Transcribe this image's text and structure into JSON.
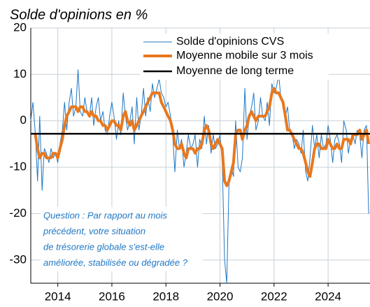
{
  "chart_data": {
    "type": "line",
    "title": "Solde d'opinions en %",
    "annotation": [
      "Question : Par rapport au mois",
      "précédent, votre situation",
      "de trésorerie globale s'est-elle",
      "améliorée, stabilisée ou dégradée ?"
    ],
    "xlim": [
      2013,
      2025.55
    ],
    "xticks": [
      2014,
      2016,
      2018,
      2020,
      2022,
      2024
    ],
    "ylim": [
      -35,
      20
    ],
    "yticks": [
      20,
      10,
      0,
      -10,
      -20,
      -30
    ],
    "grid": true,
    "legend": "upper right",
    "x": [
      2013,
      2013.08,
      2013.17,
      2013.25,
      2013.33,
      2013.42,
      2013.5,
      2013.58,
      2013.67,
      2013.75,
      2013.83,
      2013.92,
      2014,
      2014.08,
      2014.17,
      2014.25,
      2014.33,
      2014.42,
      2014.5,
      2014.58,
      2014.67,
      2014.75,
      2014.83,
      2014.92,
      2015,
      2015.08,
      2015.17,
      2015.25,
      2015.33,
      2015.42,
      2015.5,
      2015.58,
      2015.67,
      2015.75,
      2015.83,
      2015.92,
      2016,
      2016.08,
      2016.17,
      2016.25,
      2016.33,
      2016.42,
      2016.5,
      2016.58,
      2016.67,
      2016.75,
      2016.83,
      2016.92,
      2017,
      2017.08,
      2017.17,
      2017.25,
      2017.33,
      2017.42,
      2017.5,
      2017.58,
      2017.67,
      2017.75,
      2017.83,
      2017.92,
      2018,
      2018.08,
      2018.17,
      2018.25,
      2018.33,
      2018.42,
      2018.5,
      2018.58,
      2018.67,
      2018.75,
      2018.83,
      2018.92,
      2019,
      2019.08,
      2019.17,
      2019.25,
      2019.33,
      2019.42,
      2019.5,
      2019.58,
      2019.67,
      2019.75,
      2019.83,
      2019.92,
      2020,
      2020.08,
      2020.17,
      2020.25,
      2020.33,
      2020.42,
      2020.5,
      2020.58,
      2020.67,
      2020.75,
      2020.83,
      2020.92,
      2021,
      2021.08,
      2021.17,
      2021.25,
      2021.33,
      2021.42,
      2021.5,
      2021.58,
      2021.67,
      2021.75,
      2021.83,
      2021.92,
      2022,
      2022.08,
      2022.17,
      2022.25,
      2022.33,
      2022.42,
      2022.5,
      2022.58,
      2022.67,
      2022.75,
      2022.83,
      2022.92,
      2023,
      2023.08,
      2023.17,
      2023.25,
      2023.33,
      2023.42,
      2023.5,
      2023.58,
      2023.67,
      2023.75,
      2023.83,
      2023.92,
      2024,
      2024.08,
      2024.17,
      2024.25,
      2024.33,
      2024.42,
      2024.5,
      2024.58,
      2024.67,
      2024.75,
      2024.83,
      2024.92,
      2025,
      2025.08,
      2025.17,
      2025.25,
      2025.33,
      2025.42,
      2025.5
    ],
    "series": [
      {
        "name": "Solde d'opinions CVS",
        "color": "#1f77c4",
        "width": 1,
        "values": [
          0,
          4,
          -3,
          -13,
          1,
          -15,
          -6,
          -7,
          -9,
          -6,
          -8,
          -7,
          -9,
          -5,
          -2,
          4,
          -2,
          4,
          7,
          1,
          3,
          11,
          2,
          1,
          5,
          2,
          1,
          5,
          -1,
          3,
          5,
          0,
          2,
          -2,
          -3,
          1,
          4,
          1,
          -4,
          0,
          -3,
          6,
          1,
          -2,
          0,
          3,
          -5,
          5,
          -2,
          1,
          7,
          1,
          5,
          2,
          8,
          5,
          7,
          9,
          6,
          5,
          3,
          4,
          1,
          -3,
          -11,
          -2,
          -6,
          -4,
          -10,
          -7,
          -3,
          -6,
          -5,
          -3,
          -10,
          -4,
          -6,
          1,
          -5,
          -1,
          -7,
          -3,
          -6,
          -5,
          -3,
          -8,
          -30,
          -35,
          -14,
          -10,
          -12,
          0,
          -10,
          -11,
          -8,
          7,
          -4,
          1,
          3,
          6,
          -2,
          0,
          5,
          1,
          0,
          4,
          -1,
          8,
          6,
          7,
          10,
          5,
          4,
          1,
          3,
          -2,
          -3,
          -6,
          -4,
          -5,
          -7,
          -2,
          -11,
          -13,
          -8,
          -1,
          -6,
          -3,
          -8,
          -3,
          -6,
          -5,
          -1,
          -4,
          -9,
          -4,
          -3,
          -5,
          -9,
          0,
          -2,
          -7,
          -4,
          -3,
          -5,
          -2,
          -3,
          -8,
          -2,
          -1,
          -20
        ]
      },
      {
        "name": "Moyenne mobile sur 3 mois",
        "color": "#e8781e",
        "width": 4,
        "values": [
          null,
          null,
          -3,
          -6,
          -8,
          -7,
          -7,
          -8,
          -8,
          -8,
          -7,
          -7,
          -8,
          -6,
          -4,
          -1,
          1,
          2,
          3,
          3,
          3,
          2,
          3,
          3,
          2,
          2,
          1,
          2,
          1,
          1,
          0,
          0,
          -1,
          -1,
          -2,
          -1,
          0,
          0,
          -1,
          -1,
          -2,
          1,
          2,
          0,
          -1,
          0,
          -2,
          -1,
          0,
          1,
          2,
          3,
          4,
          5,
          6,
          6,
          6,
          6,
          4,
          3,
          2,
          1,
          0,
          -2,
          -5,
          -6,
          -6,
          -5,
          -7,
          -8,
          -6,
          -6,
          -6,
          -7,
          -6,
          -6,
          -5,
          -2,
          -1,
          -2,
          -5,
          -6,
          -5,
          -4,
          -5,
          -6,
          -13,
          -14,
          -13,
          -11,
          -9,
          -3,
          -2,
          -2,
          -4,
          -2,
          -1,
          1,
          2,
          1,
          0,
          1,
          1,
          1,
          1,
          2,
          3,
          6,
          7,
          6,
          6,
          5,
          4,
          1,
          -2,
          -2,
          -3,
          -4,
          -5,
          -6,
          -6,
          -7,
          -9,
          -11,
          -12,
          -9,
          -6,
          -5,
          -5,
          -6,
          -6,
          -6,
          -4,
          -5,
          -6,
          -6,
          -5,
          -6,
          -6,
          -4,
          -4,
          -4,
          -5,
          -3,
          -3,
          -3,
          -2,
          -4,
          -3,
          -2,
          -5
        ]
      },
      {
        "name": "Moyenne de long terme",
        "color": "#000000",
        "width": 2.5,
        "x": [
          2013,
          2025.55
        ],
        "values": [
          -2.8,
          -2.8
        ]
      }
    ]
  }
}
